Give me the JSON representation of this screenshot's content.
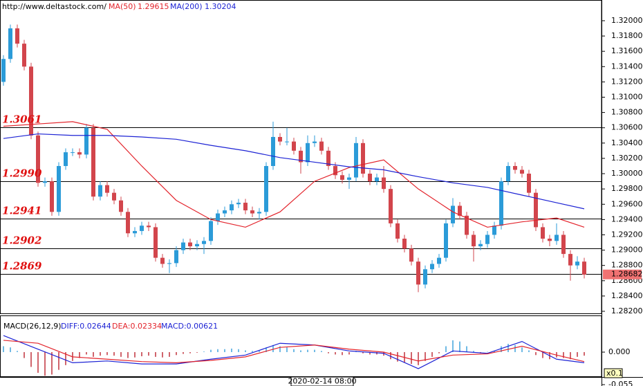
{
  "chart_data": [
    {
      "type": "candlestick",
      "source": "http://www.deltastock.com/",
      "open": [
        1.312,
        1.315,
        1.319,
        1.317,
        1.314,
        1.305,
        1.2988,
        1.299,
        1.295,
        1.301,
        1.3028,
        1.3028,
        1.3025,
        1.306,
        1.297,
        1.2985,
        1.2975,
        1.2965,
        1.295,
        1.2922,
        1.2925,
        1.2932,
        1.293,
        1.289,
        1.2882,
        1.2883,
        1.29,
        1.291,
        1.2905,
        1.2908,
        1.2912,
        1.2938,
        1.2948,
        1.2952,
        1.296,
        1.2962,
        1.2952,
        1.2948,
        1.295,
        1.301,
        1.3048,
        1.3042,
        1.3042,
        1.303,
        1.3015,
        1.304,
        1.3042,
        1.303,
        1.301,
        1.2998,
        1.2992,
        1.2995,
        1.304,
        1.3,
        1.299,
        1.2995,
        1.298,
        1.2935,
        1.2915,
        1.2902,
        1.2885,
        1.2855,
        1.2875,
        1.2882,
        1.289,
        1.2935,
        1.2958,
        1.2945,
        1.292,
        1.2905,
        1.2908,
        1.292,
        1.2932,
        1.299,
        1.301,
        1.3005,
        1.3,
        1.2975,
        1.293,
        1.2915,
        1.2912,
        1.292,
        1.2895,
        1.288,
        1.2885
      ],
      "high": [
        1.3155,
        1.3195,
        1.3195,
        1.3175,
        1.3145,
        1.3055,
        1.2995,
        1.2995,
        1.3015,
        1.3033,
        1.3033,
        1.3033,
        1.3065,
        1.3065,
        1.299,
        1.299,
        1.298,
        1.297,
        1.2955,
        1.293,
        1.2937,
        1.2937,
        1.2935,
        1.2895,
        1.2888,
        1.2905,
        1.2915,
        1.2915,
        1.2913,
        1.2917,
        1.2943,
        1.2953,
        1.2957,
        1.2965,
        1.2967,
        1.2967,
        1.2957,
        1.2955,
        1.3015,
        1.3068,
        1.3053,
        1.306,
        1.3047,
        1.3035,
        1.305,
        1.305,
        1.3047,
        1.3035,
        1.3015,
        1.3003,
        1.3,
        1.3048,
        1.3045,
        1.3005,
        1.3,
        1.301,
        1.2985,
        1.294,
        1.292,
        1.2907,
        1.289,
        1.288,
        1.2887,
        1.2895,
        1.294,
        1.2968,
        1.2963,
        1.295,
        1.2925,
        1.2913,
        1.2925,
        1.2937,
        1.2995,
        1.3015,
        1.3015,
        1.301,
        1.3005,
        1.298,
        1.2935,
        1.292,
        1.2935,
        1.2925,
        1.29,
        1.2892,
        1.289
      ],
      "low": [
        1.3115,
        1.3145,
        1.3165,
        1.3135,
        1.3045,
        1.2983,
        1.2983,
        1.2945,
        1.2945,
        1.3005,
        1.3023,
        1.302,
        1.302,
        1.2965,
        1.2965,
        1.297,
        1.296,
        1.2945,
        1.2917,
        1.2917,
        1.292,
        1.2925,
        1.2885,
        1.2877,
        1.287,
        1.2878,
        1.2895,
        1.29,
        1.29,
        1.2895,
        1.2907,
        1.2933,
        1.2943,
        1.2947,
        1.2955,
        1.2947,
        1.2943,
        1.294,
        1.2945,
        1.3005,
        1.3037,
        1.3037,
        1.3025,
        1.3,
        1.301,
        1.3035,
        1.3025,
        1.3005,
        1.2993,
        1.2987,
        1.298,
        1.299,
        1.2995,
        1.2985,
        1.2985,
        1.2975,
        1.293,
        1.291,
        1.2897,
        1.288,
        1.2845,
        1.285,
        1.287,
        1.2877,
        1.2885,
        1.293,
        1.294,
        1.2915,
        1.2885,
        1.29,
        1.2903,
        1.2915,
        1.2927,
        1.2985,
        1.3,
        1.2995,
        1.297,
        1.2925,
        1.291,
        1.2905,
        1.2907,
        1.289,
        1.286,
        1.2875,
        1.2863
      ],
      "close": [
        1.315,
        1.319,
        1.317,
        1.314,
        1.305,
        1.2988,
        1.299,
        1.295,
        1.301,
        1.3028,
        1.3028,
        1.3025,
        1.306,
        1.297,
        1.2985,
        1.2975,
        1.2965,
        1.295,
        1.2922,
        1.2925,
        1.2932,
        1.293,
        1.289,
        1.2882,
        1.2883,
        1.29,
        1.291,
        1.2905,
        1.2908,
        1.2912,
        1.2938,
        1.2948,
        1.2952,
        1.296,
        1.2962,
        1.2952,
        1.2948,
        1.295,
        1.301,
        1.3048,
        1.3042,
        1.3042,
        1.303,
        1.3015,
        1.304,
        1.3042,
        1.303,
        1.301,
        1.2998,
        1.2992,
        1.2995,
        1.304,
        1.3,
        1.299,
        1.2995,
        1.298,
        1.2935,
        1.2915,
        1.2902,
        1.2885,
        1.2855,
        1.2875,
        1.2882,
        1.289,
        1.2935,
        1.2958,
        1.2945,
        1.292,
        1.2905,
        1.2908,
        1.292,
        1.2932,
        1.299,
        1.301,
        1.3005,
        1.3,
        1.2975,
        1.293,
        1.2915,
        1.2912,
        1.292,
        1.2895,
        1.288,
        1.2885,
        1.2868
      ],
      "up_color": "#2b9bd8",
      "down_color": "#d2454c",
      "ylim": [
        1.28173,
        1.32271
      ],
      "yticks": [
        {
          "value": 1.32,
          "label": "1.32000"
        },
        {
          "value": 1.318,
          "label": "1.31800"
        },
        {
          "value": 1.316,
          "label": "1.31600"
        },
        {
          "value": 1.314,
          "label": "1.31400"
        },
        {
          "value": 1.312,
          "label": "1.31200"
        },
        {
          "value": 1.31,
          "label": "1.31000"
        },
        {
          "value": 1.308,
          "label": "1.30800"
        },
        {
          "value": 1.306,
          "label": "1.30600"
        },
        {
          "value": 1.304,
          "label": "1.30400"
        },
        {
          "value": 1.302,
          "label": "1.30200"
        },
        {
          "value": 1.3,
          "label": "1.30000"
        },
        {
          "value": 1.298,
          "label": "1.29800"
        },
        {
          "value": 1.296,
          "label": "1.29600"
        },
        {
          "value": 1.294,
          "label": "1.29400"
        },
        {
          "value": 1.292,
          "label": "1.29200"
        },
        {
          "value": 1.29,
          "label": "1.29000"
        },
        {
          "value": 1.288,
          "label": "1.28800"
        },
        {
          "value": 1.286,
          "label": "1.28600"
        },
        {
          "value": 1.284,
          "label": "1.28400"
        },
        {
          "value": 1.282,
          "label": "1.28200"
        }
      ],
      "series": [
        {
          "name": "MA(50)",
          "value": 1.29615,
          "color": "#e3232b",
          "x": [
            0,
            5,
            10,
            15,
            20,
            25,
            30,
            35,
            40,
            45,
            50,
            55,
            60,
            65,
            70,
            75,
            80,
            84
          ],
          "values": [
            1.3062,
            1.3065,
            1.3068,
            1.3058,
            1.301,
            1.2965,
            1.294,
            1.293,
            1.295,
            1.299,
            1.3008,
            1.3018,
            1.298,
            1.295,
            1.293,
            1.2937,
            1.2942,
            1.293
          ]
        },
        {
          "name": "MA(200)",
          "value": 1.30204,
          "color": "#1c22d4",
          "x": [
            0,
            5,
            10,
            15,
            20,
            25,
            30,
            35,
            40,
            45,
            50,
            55,
            60,
            65,
            70,
            75,
            80,
            84
          ],
          "values": [
            1.3046,
            1.3052,
            1.305,
            1.305,
            1.3048,
            1.3045,
            1.3037,
            1.303,
            1.3021,
            1.3015,
            1.3009,
            1.3005,
            1.2996,
            1.2988,
            1.2982,
            1.2972,
            1.2962,
            1.2954
          ]
        }
      ],
      "levels": [
        1.3061,
        {
          "value": 1.299,
          "label": "1.2990"
        },
        1.2941,
        1.2902,
        1.2869
      ],
      "level_color": "#e01010",
      "last_price": 1.28682,
      "last_price_color": "#f07272",
      "cursor_time": "2020-02-14 08:00"
    },
    {
      "type": "macd",
      "title": "MACD(26,12,9)",
      "histogram": {
        "label": "MACD:0.00621",
        "color": "#1c22d4",
        "up_color": "#3fa3dc",
        "down_color": "#c0303a",
        "values": [
          0.01,
          0.008,
          0.002,
          -0.01,
          -0.025,
          -0.035,
          -0.04,
          -0.038,
          -0.03,
          -0.022,
          -0.015,
          -0.01,
          -0.004,
          -0.008,
          -0.006,
          -0.005,
          -0.006,
          -0.008,
          -0.01,
          -0.009,
          -0.007,
          -0.006,
          -0.008,
          -0.009,
          -0.008,
          -0.005,
          -0.003,
          -0.002,
          -0.001,
          0.001,
          0.004,
          0.005,
          0.005,
          0.006,
          0.005,
          0.003,
          0.002,
          0.002,
          0.008,
          0.012,
          0.01,
          0.008,
          0.005,
          0.003,
          0.004,
          0.004,
          0.002,
          -0.002,
          -0.004,
          -0.005,
          -0.004,
          0.002,
          -0.002,
          -0.004,
          -0.004,
          -0.006,
          -0.012,
          -0.016,
          -0.018,
          -0.02,
          -0.022,
          -0.015,
          -0.008,
          -0.002,
          0.01,
          0.02,
          0.018,
          0.01,
          0.002,
          -0.002,
          0.0,
          0.002,
          0.01,
          0.014,
          0.012,
          0.008,
          0.003,
          -0.005,
          -0.01,
          -0.012,
          -0.009,
          -0.01,
          -0.012,
          -0.008,
          -0.006
        ]
      },
      "series": [
        {
          "label": "DIFF:0.02644",
          "color": "#1c22d4",
          "x": [
            0,
            5,
            10,
            15,
            20,
            25,
            30,
            35,
            40,
            45,
            50,
            55,
            60,
            65,
            70,
            75,
            80,
            84
          ],
          "values": [
            0.028,
            0.005,
            -0.018,
            -0.015,
            -0.02,
            -0.02,
            -0.012,
            -0.005,
            0.015,
            0.012,
            0.002,
            -0.002,
            -0.028,
            0.002,
            -0.002,
            0.018,
            -0.012,
            -0.018
          ]
        },
        {
          "label": "DEA:0.02334",
          "color": "#e3232b",
          "x": [
            0,
            5,
            10,
            15,
            20,
            25,
            30,
            35,
            40,
            45,
            50,
            55,
            60,
            65,
            70,
            75,
            80,
            84
          ],
          "values": [
            0.02,
            0.015,
            -0.008,
            -0.012,
            -0.016,
            -0.018,
            -0.014,
            -0.008,
            0.008,
            0.012,
            0.005,
            0.0,
            -0.015,
            -0.005,
            -0.003,
            0.01,
            -0.005,
            -0.016
          ]
        }
      ],
      "ylim": [
        -0.055,
        0.0574
      ],
      "yticks": [
        {
          "value": 0,
          "label": "0.000"
        },
        {
          "value": -0.055,
          "label": "-0.055"
        }
      ],
      "scale_note": "x0.1"
    }
  ]
}
